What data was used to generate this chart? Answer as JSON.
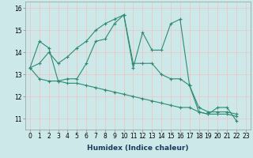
{
  "xlabel": "Humidex (Indice chaleur)",
  "x": [
    0,
    1,
    2,
    3,
    4,
    5,
    6,
    7,
    8,
    9,
    10,
    11,
    12,
    13,
    14,
    15,
    16,
    17,
    18,
    19,
    20,
    21,
    22,
    23
  ],
  "line1": [
    13.3,
    14.5,
    14.2,
    12.7,
    12.8,
    12.8,
    13.5,
    14.5,
    14.6,
    15.3,
    15.7,
    13.3,
    14.9,
    14.1,
    14.1,
    15.3,
    15.5,
    12.5,
    11.3,
    11.2,
    11.5,
    11.5,
    10.9,
    null
  ],
  "line2": [
    13.3,
    13.5,
    14.0,
    13.5,
    13.8,
    14.2,
    14.5,
    15.0,
    15.3,
    15.5,
    15.7,
    13.5,
    13.5,
    13.5,
    13.0,
    12.8,
    12.8,
    12.5,
    11.5,
    11.3,
    11.3,
    11.3,
    11.2,
    null
  ],
  "line3": [
    13.3,
    12.8,
    12.7,
    12.7,
    12.6,
    12.6,
    12.5,
    12.4,
    12.3,
    12.2,
    12.1,
    12.0,
    11.9,
    11.8,
    11.7,
    11.6,
    11.5,
    11.5,
    11.3,
    11.2,
    11.2,
    11.2,
    11.1,
    null
  ],
  "line_color": "#2e8b72",
  "bg_color": "#cce8e8",
  "grid_color": "#e8c8c8",
  "ylim": [
    10.5,
    16.3
  ],
  "xlim": [
    -0.5,
    23.5
  ],
  "yticks": [
    11,
    12,
    13,
    14,
    15,
    16
  ],
  "xticks": [
    0,
    1,
    2,
    3,
    4,
    5,
    6,
    7,
    8,
    9,
    10,
    11,
    12,
    13,
    14,
    15,
    16,
    17,
    18,
    19,
    20,
    21,
    22,
    23
  ],
  "tick_fontsize": 5.5,
  "xlabel_fontsize": 6.5
}
